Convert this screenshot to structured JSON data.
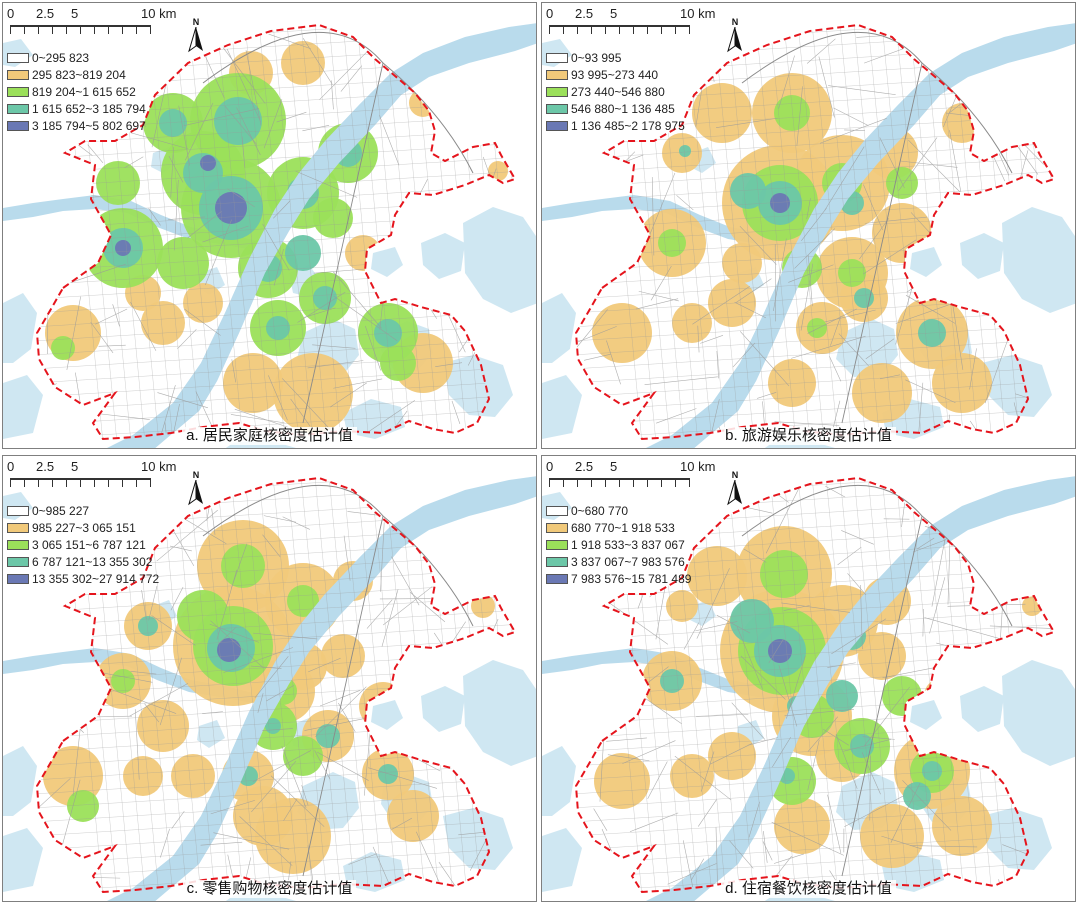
{
  "scale": {
    "ticks": [
      "0",
      "2.5",
      "5",
      "10 km"
    ],
    "tick_km": [
      0,
      2.5,
      5,
      10
    ]
  },
  "north": {
    "label": "N"
  },
  "colors": {
    "class1": "#ffffff",
    "class2": "#f1c97a",
    "class3": "#9be05a",
    "class4": "#6cc7a8",
    "class5": "#6a78b4",
    "water": "#cfe7f2",
    "river": "#b9dbec",
    "boundary": "#e5141c",
    "road": "#9a9a9a"
  },
  "panels": [
    {
      "id": "a",
      "caption": "a. 居民家庭核密度估计值",
      "legend": [
        "0~295 823",
        "295 823~819 204",
        "819 204~1 615 652",
        "1 615 652~3 185 794",
        "3 185 794~5 802 697"
      ]
    },
    {
      "id": "b",
      "caption": "b. 旅游娱乐核密度估计值",
      "legend": [
        "0~93 995",
        "93 995~273 440",
        "273 440~546 880",
        "546 880~1 136 485",
        "1 136 485~2 178 975"
      ]
    },
    {
      "id": "c",
      "caption": "c. 零售购物核密度估计值",
      "legend": [
        "0~985 227",
        "985 227~3 065 151",
        "3 065 151~6 787 121",
        "6 787 121~13 355 302",
        "13 355 302~27 914 772"
      ]
    },
    {
      "id": "d",
      "caption": "d. 住宿餐饮核密度估计值",
      "legend": [
        "0~680 770",
        "680 770~1 918 533",
        "1 918 533~3 837 067",
        "3 837 067~7 983 576",
        "7 983 576~15 781 489"
      ]
    }
  ]
}
